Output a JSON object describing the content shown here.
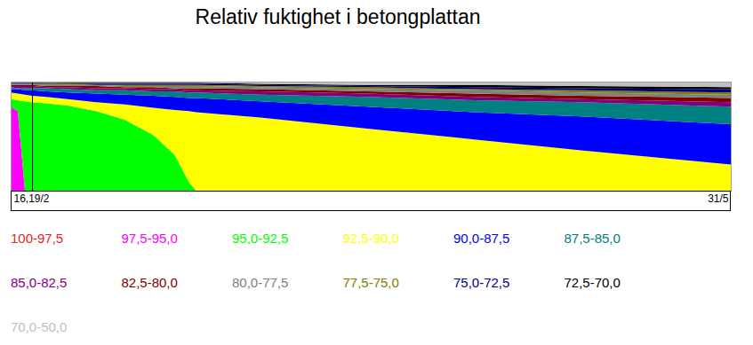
{
  "chart_data": {
    "type": "area",
    "title": "Relativ fuktighet i betongplattan",
    "stacked": true,
    "tick_labels": "x",
    "x": [
      0,
      1,
      2,
      3,
      5,
      8,
      12,
      16,
      20,
      23,
      25,
      26,
      35,
      50,
      65,
      80,
      101
    ],
    "xlim": [
      0,
      101
    ],
    "xticks": [
      {
        "value": 0,
        "label": "16,19/2"
      },
      {
        "value": 101,
        "label": "31/5"
      }
    ],
    "ylim": [
      0,
      100
    ],
    "yticks": [],
    "vertical_line": 3,
    "series": [
      {
        "name": "100-97,5",
        "color": "#e8231d",
        "values": [
          0,
          0,
          0,
          0,
          0,
          0,
          0,
          0,
          0,
          0,
          0,
          0,
          0,
          0,
          0,
          0,
          0
        ]
      },
      {
        "name": "97,5-95,0",
        "color": "#ff00ff",
        "values": [
          77,
          73,
          0,
          0,
          0,
          0,
          0,
          0,
          0,
          0,
          0,
          0,
          0,
          0,
          0,
          0,
          0
        ]
      },
      {
        "name": "95,0-92,5",
        "color": "#00ff00",
        "values": [
          7,
          10,
          82,
          81,
          80,
          78,
          73,
          65,
          51,
          33,
          8,
          0,
          0,
          0,
          0,
          0,
          0
        ]
      },
      {
        "name": "92,5-90,0",
        "color": "#ffff00",
        "values": [
          6,
          6,
          6,
          6,
          6,
          6,
          8,
          14,
          25,
          41,
          65,
          72,
          67,
          57,
          47,
          37,
          24
        ]
      },
      {
        "name": "90,0-87,5",
        "color": "#0000ff",
        "values": [
          3,
          4,
          4,
          5,
          5,
          6,
          8,
          9,
          11,
          12,
          12,
          13,
          15,
          20,
          25,
          31,
          37
        ]
      },
      {
        "name": "87,5-85,0",
        "color": "#008080",
        "values": [
          2,
          1,
          2,
          2,
          3,
          3,
          3,
          4,
          4,
          5,
          5,
          5,
          6,
          9,
          11,
          13,
          16
        ]
      },
      {
        "name": "85,0-82,5",
        "color": "#800080",
        "values": [
          1,
          2,
          2,
          2,
          1,
          2,
          2,
          2,
          2,
          2,
          2,
          2,
          3,
          3,
          3,
          3,
          4
        ]
      },
      {
        "name": "82,5-80,0",
        "color": "#800000",
        "values": [
          1,
          1,
          1,
          1,
          1,
          1,
          2,
          1,
          2,
          1,
          2,
          2,
          2,
          2,
          3,
          3,
          4
        ]
      },
      {
        "name": "80,0-77,5",
        "color": "#808080",
        "values": [
          1,
          1,
          1,
          0,
          1,
          1,
          1,
          1,
          1,
          2,
          2,
          2,
          2,
          2,
          3,
          3,
          3
        ]
      },
      {
        "name": "77,5-75,0",
        "color": "#808000",
        "values": [
          0,
          0,
          0,
          1,
          1,
          1,
          0,
          1,
          1,
          1,
          1,
          1,
          1,
          2,
          1,
          2,
          2
        ]
      },
      {
        "name": "75,0-72,5",
        "color": "#000080",
        "values": [
          1,
          1,
          1,
          1,
          1,
          0,
          1,
          1,
          1,
          1,
          1,
          1,
          1,
          1,
          2,
          2,
          3
        ]
      },
      {
        "name": "72,5-70,0",
        "color": "#000000",
        "values": [
          0,
          0,
          0,
          0,
          0,
          1,
          1,
          1,
          1,
          1,
          1,
          1,
          1,
          1,
          2,
          2,
          2
        ]
      },
      {
        "name": "70,0-50,0",
        "color": "#c0c0c0",
        "values": [
          1,
          1,
          1,
          1,
          1,
          1,
          1,
          1,
          1,
          1,
          1,
          1,
          2,
          3,
          3,
          4,
          5
        ]
      }
    ]
  }
}
